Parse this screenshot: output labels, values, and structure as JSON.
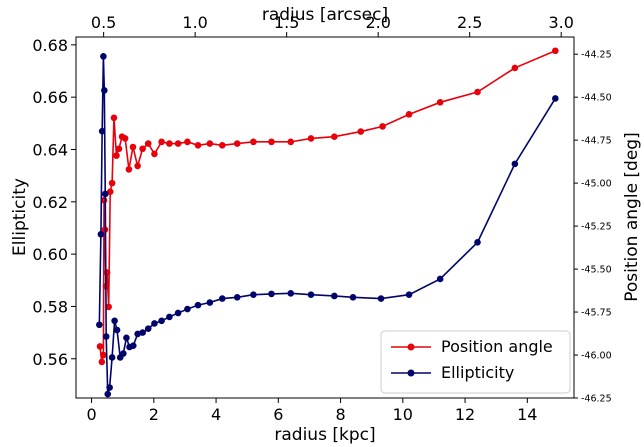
{
  "chart_data": {
    "type": "line",
    "xlabel": "radius [kpc]",
    "x2label": "radius [arcsec]",
    "ylabel": "Ellipticity",
    "y2label": "Position angle [deg]",
    "xlim": [
      -0.5,
      15.5
    ],
    "ylim": [
      0.545,
      0.683
    ],
    "y2lim": [
      -46.25,
      -44.15
    ],
    "x_ticks": [
      0,
      2,
      4,
      6,
      8,
      10,
      12,
      14
    ],
    "y_ticks": [
      0.56,
      0.58,
      0.6,
      0.62,
      0.64,
      0.66,
      0.68
    ],
    "y2_ticks": [
      -46.25,
      -46.0,
      -45.75,
      -45.5,
      -45.25,
      -45.0,
      -44.75,
      -44.5,
      -44.25
    ],
    "x2_ticks": [
      {
        "label": "0.5",
        "x_kpc": 1.22
      },
      {
        "label": "1.0",
        "x_kpc": 5.94
      },
      {
        "label": "1.5",
        "x_kpc": 10.65
      },
      {
        "label": "2.0",
        "x_kpc": 15.37
      },
      {
        "label": "2.5",
        "x_kpc": 20.08
      },
      {
        "label": "3.0",
        "x_kpc": 24.8
      }
    ],
    "x2_scale_note": "",
    "series": [
      {
        "name": "Position angle",
        "axis": "right",
        "color": "#e8000b",
        "x": [
          0.27,
          0.33,
          0.38,
          0.4,
          0.43,
          0.46,
          0.5,
          0.55,
          0.6,
          0.66,
          0.72,
          0.8,
          0.88,
          0.98,
          1.08,
          1.2,
          1.33,
          1.48,
          1.64,
          1.82,
          2.02,
          2.25,
          2.5,
          2.78,
          3.08,
          3.42,
          3.8,
          4.2,
          4.68,
          5.2,
          5.78,
          6.4,
          7.05,
          7.8,
          8.65,
          9.35,
          10.2,
          11.2,
          12.4,
          13.6,
          14.9
        ],
        "y": [
          -45.95,
          -46.04,
          -46.0,
          -45.1,
          -45.27,
          -45.6,
          -45.52,
          -45.72,
          -45.05,
          -45.0,
          -44.62,
          -44.84,
          -44.8,
          -44.73,
          -44.74,
          -44.92,
          -44.79,
          -44.9,
          -44.8,
          -44.77,
          -44.83,
          -44.76,
          -44.77,
          -44.77,
          -44.76,
          -44.78,
          -44.77,
          -44.78,
          -44.77,
          -44.76,
          -44.76,
          -44.76,
          -44.74,
          -44.73,
          -44.7,
          -44.67,
          -44.6,
          -44.53,
          -44.47,
          -44.33,
          -44.23
        ],
        "x_plot": [
          0.27,
          0.33,
          0.38,
          0.4,
          0.43,
          0.46,
          0.5,
          0.55,
          0.6,
          0.66,
          0.72,
          0.8,
          0.88,
          0.98,
          1.08,
          1.2,
          1.33,
          1.48,
          1.64,
          1.82,
          2.02,
          2.25,
          2.5,
          2.78,
          3.08,
          3.42,
          3.8,
          4.2,
          4.68,
          5.2,
          5.78,
          6.4,
          7.05,
          7.8,
          8.65,
          9.35,
          10.2,
          11.2,
          12.4,
          13.6,
          14.9
        ]
      },
      {
        "name": "Ellipticity",
        "axis": "left",
        "color": "#00046b",
        "x": [
          0.25,
          0.3,
          0.34,
          0.38,
          0.41,
          0.44,
          0.47,
          0.52,
          0.58,
          0.66,
          0.74,
          0.82,
          0.92,
          1.02,
          1.12,
          1.22,
          1.34,
          1.48,
          1.64,
          1.82,
          2.02,
          2.25,
          2.5,
          2.78,
          3.08,
          3.42,
          3.8,
          4.2,
          4.68,
          5.2,
          5.78,
          6.4,
          7.05,
          7.8,
          8.4,
          9.3,
          10.2,
          11.2,
          12.4,
          13.6,
          14.9
        ],
        "y": [
          0.573,
          0.6076,
          0.647,
          0.6756,
          0.6626,
          0.623,
          0.5685,
          0.5465,
          0.549,
          0.5605,
          0.5745,
          0.571,
          0.5605,
          0.562,
          0.568,
          0.5645,
          0.565,
          0.5695,
          0.57,
          0.5715,
          0.5735,
          0.5745,
          0.576,
          0.5775,
          0.579,
          0.5805,
          0.5815,
          0.583,
          0.5835,
          0.5845,
          0.5848,
          0.585,
          0.5845,
          0.584,
          0.5835,
          0.583,
          0.5845,
          0.5905,
          0.6045,
          0.6345,
          0.6595
        ]
      }
    ],
    "legend": {
      "placement": "lower right",
      "entries": [
        "Position angle",
        "Ellipticity"
      ]
    },
    "grid": false
  }
}
